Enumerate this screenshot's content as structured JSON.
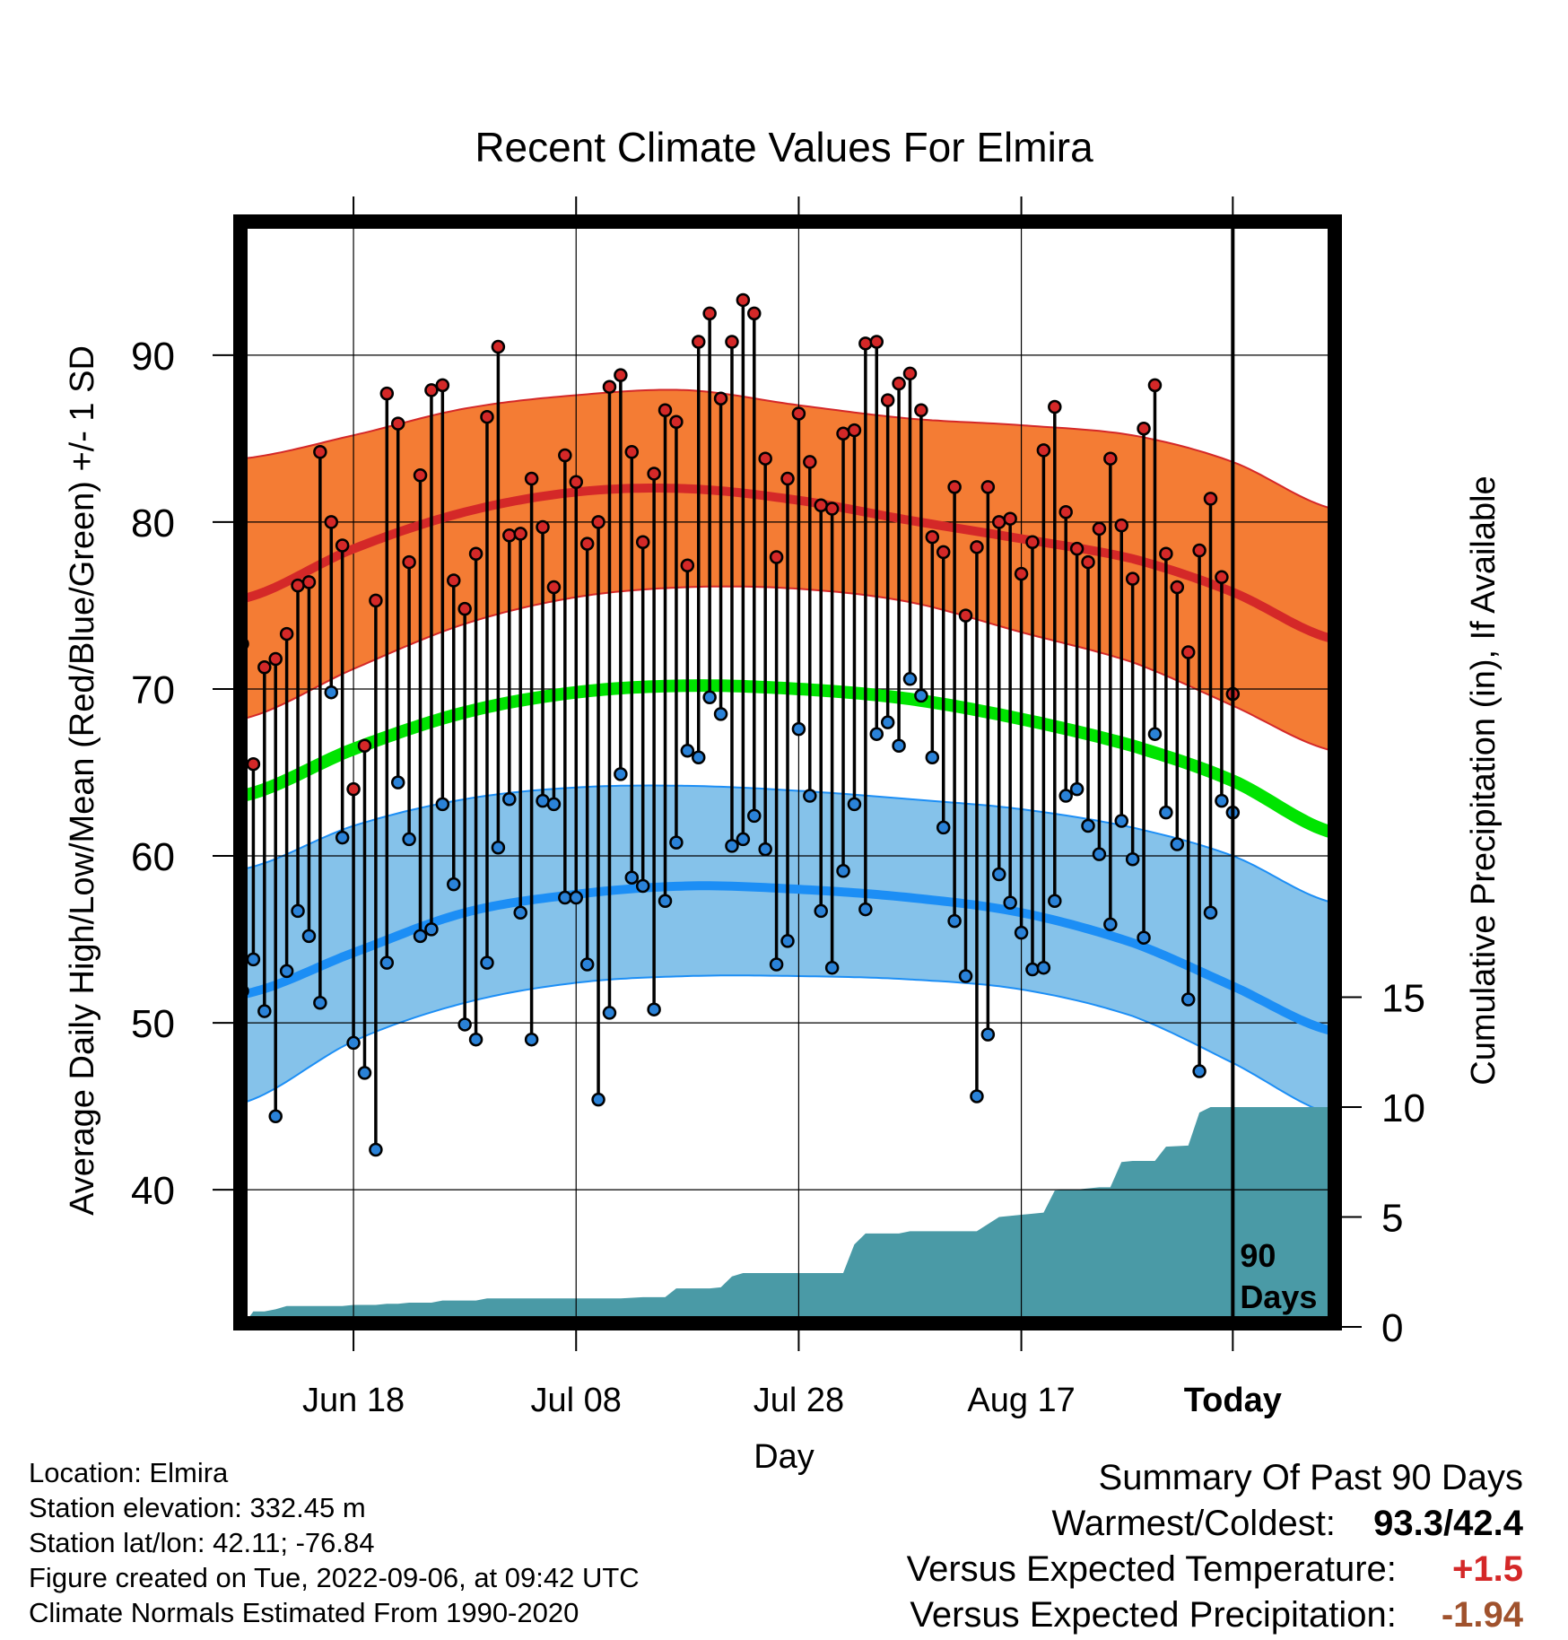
{
  "chart_data": {
    "type": "line",
    "title": "Recent Climate Values For Elmira",
    "xlabel": "Day",
    "ylabel": "Average Daily High/Low/Mean (Red/Blue/Green) +/- 1 SD",
    "y2label": "Cumulative Precipitation (in), If Available",
    "x_range_days": [
      -89,
      9
    ],
    "ylim": [
      32,
      98
    ],
    "y2lim": [
      0,
      25
    ],
    "grid": true,
    "x_ticks": [
      {
        "day": -79,
        "label": "Jun 18"
      },
      {
        "day": -59,
        "label": "Jul 08"
      },
      {
        "day": -39,
        "label": "Jul 28"
      },
      {
        "day": -19,
        "label": "Aug 17"
      },
      {
        "day": 0,
        "label": "Today"
      }
    ],
    "y_ticks": [
      40,
      50,
      60,
      70,
      80,
      90
    ],
    "y2_ticks": [
      0,
      5,
      10,
      15
    ],
    "today_marker": {
      "day": 0,
      "label_line1": "90",
      "label_line2": "Days"
    },
    "normals": {
      "days": [
        -89,
        -79,
        -69,
        -59,
        -49,
        -39,
        -29,
        -19,
        -9,
        0,
        9
      ],
      "high_mean": [
        75.4,
        78.4,
        80.6,
        81.8,
        82.0,
        81.3,
        80.1,
        79.0,
        77.8,
        75.8,
        73.0
      ],
      "high_sd_upper": [
        83.8,
        85.2,
        86.8,
        87.6,
        87.9,
        87.0,
        86.2,
        85.8,
        85.2,
        83.6,
        80.8
      ],
      "high_sd_lower": [
        68.2,
        71.2,
        73.9,
        75.5,
        76.1,
        76.0,
        75.2,
        73.4,
        71.6,
        69.0,
        66.3
      ],
      "mean": [
        63.6,
        66.4,
        68.6,
        69.8,
        70.2,
        70.0,
        69.4,
        68.2,
        66.6,
        64.5,
        61.4
      ],
      "low_mean": [
        51.7,
        54.2,
        56.6,
        57.7,
        58.2,
        58.0,
        57.5,
        56.6,
        54.8,
        52.2,
        49.5
      ],
      "low_sd_upper": [
        59.2,
        61.8,
        63.4,
        64.1,
        64.2,
        63.9,
        63.4,
        62.8,
        61.7,
        60.0,
        57.2
      ],
      "low_sd_lower": [
        45.2,
        48.9,
        51.2,
        52.4,
        52.8,
        52.8,
        52.6,
        52.0,
        50.4,
        47.6,
        44.5
      ]
    },
    "daily": {
      "days": [
        -89,
        -88,
        -87,
        -86,
        -85,
        -84,
        -83,
        -82,
        -81,
        -80,
        -79,
        -78,
        -77,
        -76,
        -75,
        -74,
        -73,
        -72,
        -71,
        -70,
        -69,
        -68,
        -67,
        -66,
        -65,
        -64,
        -63,
        -62,
        -61,
        -60,
        -59,
        -58,
        -57,
        -56,
        -55,
        -54,
        -53,
        -52,
        -51,
        -50,
        -49,
        -48,
        -47,
        -46,
        -45,
        -44,
        -43,
        -42,
        -41,
        -40,
        -39,
        -38,
        -37,
        -36,
        -35,
        -34,
        -33,
        -32,
        -31,
        -30,
        -29,
        -28,
        -27,
        -26,
        -25,
        -24,
        -23,
        -22,
        -21,
        -20,
        -19,
        -18,
        -17,
        -16,
        -15,
        -14,
        -13,
        -12,
        -11,
        -10,
        -9,
        -8,
        -7,
        -6,
        -5,
        -4,
        -3,
        -2,
        -1,
        0
      ],
      "high": [
        72.7,
        65.5,
        71.3,
        71.8,
        73.3,
        76.2,
        76.4,
        84.2,
        80.0,
        78.6,
        64.0,
        66.6,
        75.3,
        87.7,
        85.9,
        77.6,
        82.8,
        87.9,
        88.2,
        76.5,
        74.8,
        78.1,
        86.3,
        90.5,
        79.2,
        79.3,
        82.6,
        79.7,
        76.1,
        84.0,
        82.4,
        78.7,
        80.0,
        88.1,
        88.8,
        84.2,
        78.8,
        82.9,
        86.7,
        86.0,
        77.4,
        90.8,
        92.5,
        87.4,
        90.8,
        93.3,
        92.5,
        83.8,
        77.9,
        82.6,
        86.5,
        83.6,
        81.0,
        80.8,
        85.3,
        85.5,
        90.7,
        90.8,
        87.3,
        88.3,
        88.9,
        86.7,
        79.1,
        78.2,
        82.1,
        74.4,
        78.5,
        82.1,
        80.0,
        80.2,
        76.9,
        78.8,
        84.3,
        86.9,
        80.6,
        78.4,
        77.6,
        79.6,
        83.8,
        79.8,
        76.6,
        85.6,
        88.2,
        78.1,
        76.1,
        72.2,
        78.3,
        81.4,
        76.7,
        69.7
      ],
      "low": [
        51.9,
        53.8,
        50.7,
        44.4,
        53.1,
        56.7,
        55.2,
        51.2,
        69.8,
        61.1,
        48.8,
        47.0,
        42.4,
        53.6,
        64.4,
        61.0,
        55.2,
        55.6,
        63.1,
        58.3,
        49.9,
        49.0,
        53.6,
        60.5,
        63.4,
        56.6,
        49.0,
        63.3,
        63.1,
        57.5,
        57.5,
        53.5,
        45.4,
        50.6,
        64.9,
        58.7,
        58.2,
        50.8,
        57.3,
        60.8,
        66.3,
        65.9,
        69.5,
        68.5,
        60.6,
        61.0,
        62.4,
        60.4,
        53.5,
        54.9,
        67.6,
        63.6,
        56.7,
        53.3,
        59.1,
        63.1,
        56.8,
        67.3,
        68.0,
        66.6,
        70.6,
        69.6,
        65.9,
        61.7,
        56.1,
        52.8,
        45.6,
        49.3,
        58.9,
        57.2,
        55.4,
        53.2,
        53.3,
        57.3,
        63.6,
        64.0,
        61.8,
        60.1,
        55.9,
        62.1,
        59.8,
        55.1,
        67.3,
        62.6,
        60.7,
        51.4,
        47.1,
        56.6,
        63.3,
        62.6
      ]
    },
    "precip_cumulative": {
      "days": [
        -89,
        -88,
        -87,
        -86,
        -85,
        -83,
        -82,
        -80,
        -79,
        -77,
        -76,
        -75,
        -74,
        -72,
        -71,
        -70,
        -68,
        -67,
        -65,
        -61,
        -58,
        -55,
        -53,
        -51,
        -50,
        -49,
        -47,
        -46,
        -45,
        -44,
        -43,
        -41,
        -39,
        -35,
        -34,
        -33,
        -30,
        -29,
        -27,
        -24,
        -23,
        -21,
        -20,
        -19,
        -17,
        -16,
        -15,
        -14,
        -12,
        -11,
        -10,
        -9,
        -7,
        -6,
        -4,
        -3,
        -2,
        -1,
        0,
        9
      ],
      "values": [
        0.0,
        0.7,
        0.7,
        0.8,
        0.95,
        0.95,
        0.95,
        0.95,
        1.0,
        1.0,
        1.05,
        1.05,
        1.1,
        1.1,
        1.2,
        1.2,
        1.2,
        1.3,
        1.3,
        1.3,
        1.3,
        1.3,
        1.35,
        1.35,
        1.75,
        1.75,
        1.75,
        1.8,
        2.3,
        2.45,
        2.45,
        2.45,
        2.45,
        2.45,
        3.75,
        4.25,
        4.25,
        4.35,
        4.35,
        4.35,
        4.35,
        5.0,
        5.05,
        5.1,
        5.2,
        6.2,
        6.25,
        6.25,
        6.35,
        6.35,
        7.5,
        7.55,
        7.55,
        8.2,
        8.25,
        9.75,
        10.0,
        10.0,
        10.0,
        10.0
      ]
    },
    "colors": {
      "high_band": "#f47c34",
      "high_band_edge": "#d42828",
      "high_line": "#d42828",
      "mean_line": "#00e400",
      "low_band": "#85c2ea",
      "low_band_edge": "#1c8ef5",
      "low_line": "#1c8ef5",
      "precip": "#4a9aa6",
      "high_dot": "#d42828",
      "low_dot": "#2a82d8"
    }
  },
  "info": {
    "location": "Location: Elmira",
    "elevation": "Station elevation: 332.45 m",
    "latlon": "Station lat/lon: 42.11; -76.84",
    "created": "Figure created on Tue, 2022-09-06, at 09:42 UTC",
    "normals": "Climate Normals Estimated From 1990-2020"
  },
  "summary": {
    "heading": "Summary Of Past 90 Days",
    "warm_cold_label": "Warmest/Coldest:",
    "warm_cold_value": "93.3/42.4",
    "temp_label": "Versus Expected Temperature:",
    "temp_value": "+1.5",
    "temp_color": "#d42828",
    "precip_label": "Versus Expected Precipitation:",
    "precip_value": "-1.94",
    "precip_color": "#a0522d"
  }
}
